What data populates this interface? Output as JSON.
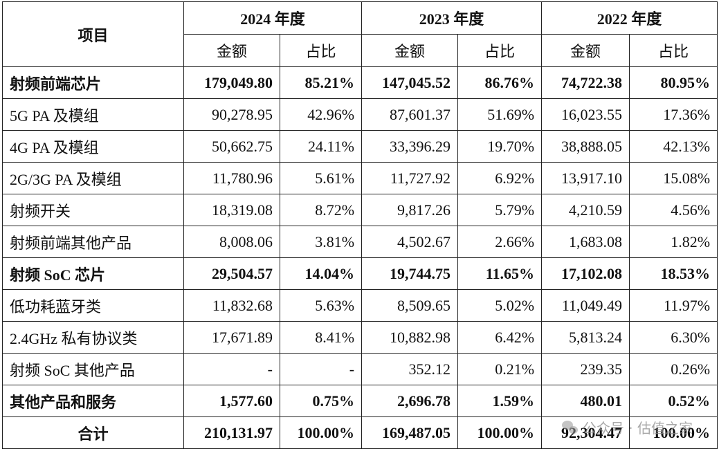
{
  "header": {
    "item_label": "项目",
    "years": [
      "2024 年度",
      "2023 年度",
      "2022 年度"
    ],
    "amount_label": "金额",
    "ratio_label": "占比"
  },
  "rows": [
    {
      "label": "射频前端芯片",
      "bold": true,
      "values": [
        "179,049.80",
        "85.21%",
        "147,045.52",
        "86.76%",
        "74,722.38",
        "80.95%"
      ]
    },
    {
      "label": "5G PA 及模组",
      "bold": false,
      "values": [
        "90,278.95",
        "42.96%",
        "87,601.37",
        "51.69%",
        "16,023.55",
        "17.36%"
      ]
    },
    {
      "label": "4G PA 及模组",
      "bold": false,
      "values": [
        "50,662.75",
        "24.11%",
        "33,396.29",
        "19.70%",
        "38,888.05",
        "42.13%"
      ]
    },
    {
      "label": "2G/3G PA 及模组",
      "bold": false,
      "values": [
        "11,780.96",
        "5.61%",
        "11,727.92",
        "6.92%",
        "13,917.10",
        "15.08%"
      ]
    },
    {
      "label": "射频开关",
      "bold": false,
      "values": [
        "18,319.08",
        "8.72%",
        "9,817.26",
        "5.79%",
        "4,210.59",
        "4.56%"
      ]
    },
    {
      "label": "射频前端其他产品",
      "bold": false,
      "values": [
        "8,008.06",
        "3.81%",
        "4,502.67",
        "2.66%",
        "1,683.08",
        "1.82%"
      ]
    },
    {
      "label": "射频 SoC 芯片",
      "bold": true,
      "values": [
        "29,504.57",
        "14.04%",
        "19,744.75",
        "11.65%",
        "17,102.08",
        "18.53%"
      ]
    },
    {
      "label": "低功耗蓝牙类",
      "bold": false,
      "values": [
        "11,832.68",
        "5.63%",
        "8,509.65",
        "5.02%",
        "11,049.49",
        "11.97%"
      ]
    },
    {
      "label": "2.4GHz 私有协议类",
      "bold": false,
      "values": [
        "17,671.89",
        "8.41%",
        "10,882.98",
        "6.42%",
        "5,813.24",
        "6.30%"
      ]
    },
    {
      "label": "射频 SoC 其他产品",
      "bold": false,
      "values": [
        "-",
        "-",
        "352.12",
        "0.21%",
        "239.35",
        "0.26%"
      ]
    },
    {
      "label": "其他产品和服务",
      "bold": true,
      "values": [
        "1,577.60",
        "0.75%",
        "2,696.78",
        "1.59%",
        "480.01",
        "0.52%"
      ]
    }
  ],
  "total": {
    "label": "合计",
    "values": [
      "210,131.97",
      "100.00%",
      "169,487.05",
      "100.00%",
      "92,304.47",
      "100.00%"
    ]
  },
  "watermark": "公众号 · 估值之家"
}
